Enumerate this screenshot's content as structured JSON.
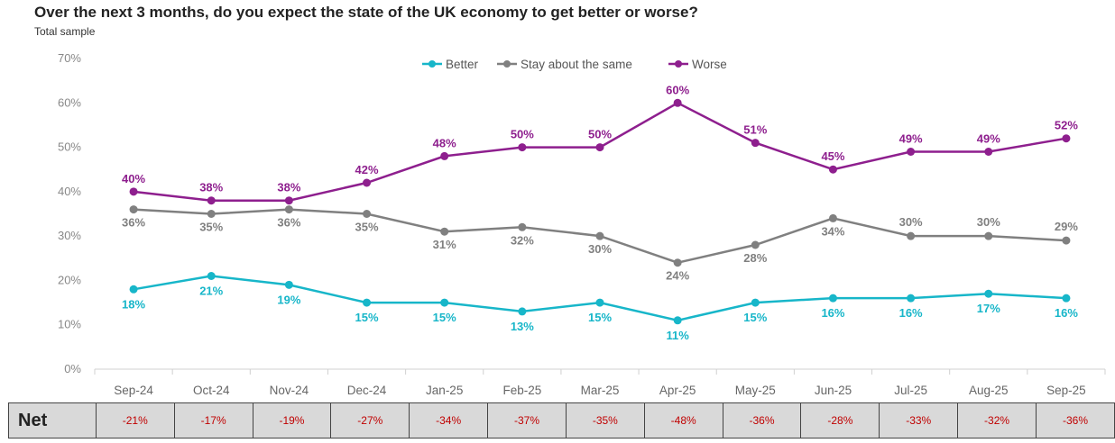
{
  "title": "Over the next 3 months, do you expect the state of the UK economy to get better or worse?",
  "subtitle": "Total sample",
  "chart_data": {
    "type": "line",
    "categories": [
      "Sep-24",
      "Oct-24",
      "Nov-24",
      "Dec-24",
      "Jan-25",
      "Feb-25",
      "Mar-25",
      "Apr-25",
      "May-25",
      "Jun-25",
      "Jul-25",
      "Aug-25",
      "Sep-25"
    ],
    "ylim": [
      0,
      70
    ],
    "yticks": [
      "0%",
      "10%",
      "20%",
      "30%",
      "40%",
      "50%",
      "60%",
      "70%"
    ],
    "legend_position": "top",
    "series": [
      {
        "name": "Better",
        "color": "#17b6c9",
        "values": [
          18,
          21,
          19,
          15,
          15,
          13,
          15,
          11,
          15,
          16,
          16,
          17,
          16
        ],
        "label_position": "below"
      },
      {
        "name": "Stay about the same",
        "color": "#808080",
        "values": [
          36,
          35,
          36,
          35,
          31,
          32,
          30,
          24,
          28,
          34,
          30,
          30,
          29
        ],
        "label_position": "mixed"
      },
      {
        "name": "Worse",
        "color": "#8e1f8e",
        "values": [
          40,
          38,
          38,
          42,
          48,
          50,
          50,
          60,
          51,
          45,
          49,
          49,
          52
        ],
        "label_position": "above"
      }
    ]
  },
  "net_row": {
    "label": "Net",
    "values": [
      "-21%",
      "-17%",
      "-19%",
      "-27%",
      "-34%",
      "-37%",
      "-35%",
      "-48%",
      "-36%",
      "-28%",
      "-33%",
      "-32%",
      "-36%"
    ]
  }
}
